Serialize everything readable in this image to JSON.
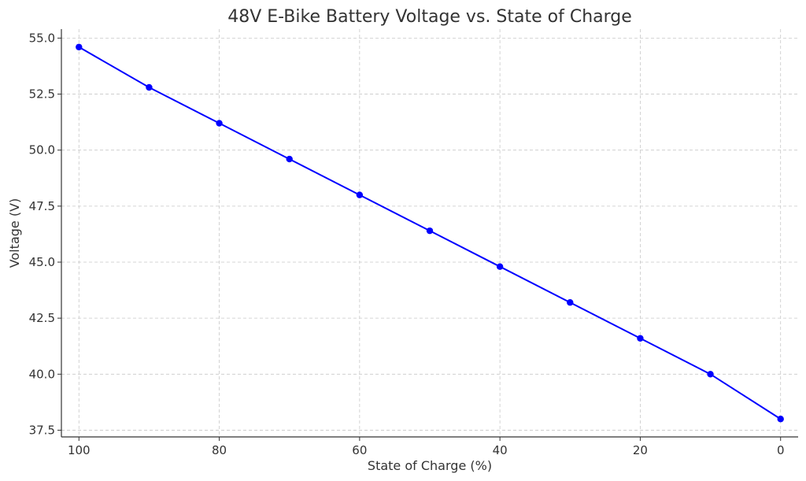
{
  "chart_data": {
    "type": "line",
    "title": "48V E-Bike Battery Voltage vs. State of Charge",
    "xlabel": "State of Charge (%)",
    "ylabel": "Voltage (V)",
    "x_inverted": true,
    "xlim": [
      102.5,
      -2.5
    ],
    "ylim": [
      37.2,
      55.4
    ],
    "grid": true,
    "grid_style": "dashed",
    "x_ticks": [
      100,
      80,
      60,
      40,
      20,
      0
    ],
    "x_tick_labels": [
      "100",
      "80",
      "60",
      "40",
      "20",
      "0"
    ],
    "y_ticks": [
      37.5,
      40.0,
      42.5,
      45.0,
      47.5,
      50.0,
      52.5,
      55.0
    ],
    "y_tick_labels": [
      "37.5",
      "40.0",
      "42.5",
      "45.0",
      "47.5",
      "50.0",
      "52.5",
      "55.0"
    ],
    "series": [
      {
        "color": "#0000ff",
        "marker": "circle",
        "x": [
          100,
          90,
          80,
          70,
          60,
          50,
          40,
          30,
          20,
          10,
          0
        ],
        "y": [
          54.6,
          52.8,
          51.2,
          49.6,
          48.0,
          46.4,
          44.8,
          43.2,
          41.6,
          40.0,
          38.0
        ]
      }
    ]
  }
}
